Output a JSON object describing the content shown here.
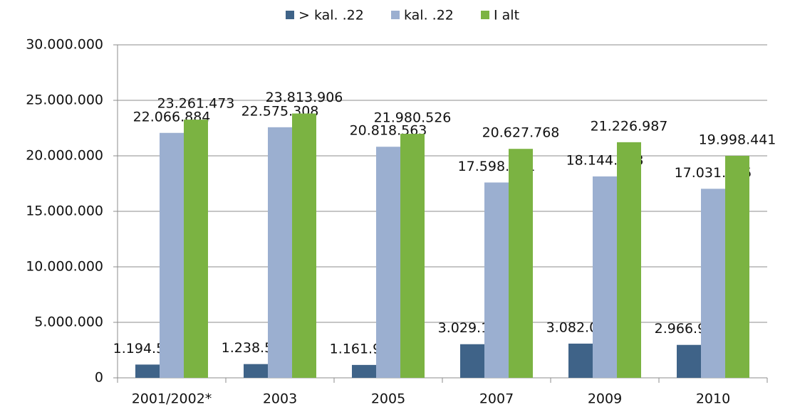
{
  "chart_data": {
    "type": "bar",
    "categories": [
      "2001/2002*",
      "2003",
      "2005",
      "2007",
      "2009",
      "2010"
    ],
    "series": [
      {
        "name": "> kal. .22",
        "color": "#3f6388",
        "values": [
          1194589,
          1238598,
          1161963,
          3029187,
          3082039,
          2966906
        ],
        "value_labels": [
          "1.194.589",
          "1.238.598",
          "1.161.963",
          "3.029.187",
          "3.082.039",
          "2.966.906"
        ]
      },
      {
        "name": "kal. .22",
        "color": "#9bafd0",
        "values": [
          22066884,
          22575308,
          20818563,
          17598581,
          18144948,
          17031535
        ],
        "value_labels": [
          "22.066.884",
          "22.575.308",
          "20.818.563",
          "17.598.581",
          "18.144.948",
          "17.031.535"
        ]
      },
      {
        "name": "I alt",
        "color": "#7bb342",
        "values": [
          23261473,
          23813906,
          21980526,
          20627768,
          21226987,
          19998441
        ],
        "value_labels": [
          "23.261.473",
          "23.813.906",
          "21.980.526",
          "20.627.768",
          "21.226.987",
          "19.998.441"
        ]
      }
    ],
    "ylim": [
      0,
      30000000
    ],
    "yticks": [
      0,
      {
        "value": 5000000,
        "label": "5.000.000"
      },
      {
        "value": 10000000,
        "label": "10.000.000"
      },
      {
        "value": 15000000,
        "label": "15.000.000"
      },
      {
        "value": 20000000,
        "label": "20.000.000"
      },
      {
        "value": 25000000,
        "label": "25.000.000"
      },
      {
        "value": 30000000,
        "label": "30.000.000"
      }
    ],
    "grid": true,
    "legend": "top"
  }
}
